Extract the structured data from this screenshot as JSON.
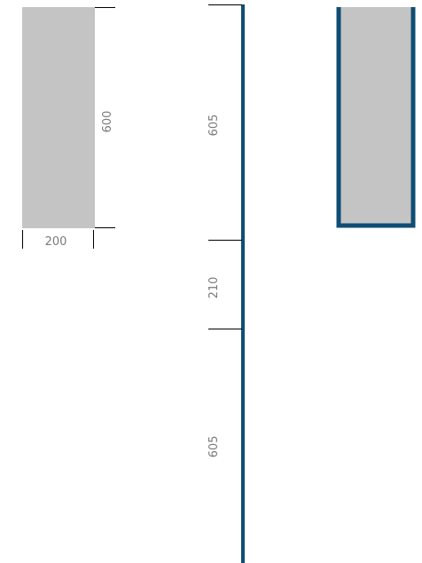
{
  "panel": {
    "width_label": "200",
    "height_label": "600",
    "fill_color": "#c4c4c4"
  },
  "post": {
    "segments": [
      {
        "label": "605"
      },
      {
        "label": "210"
      },
      {
        "label": "605"
      }
    ],
    "color": "#0f4d74"
  },
  "framed_panel": {
    "fill_color": "#c4c4c4",
    "frame_color": "#0f4d74"
  },
  "dimension_line_color": "#000000",
  "dimension_text_color": "#7a7a7a"
}
